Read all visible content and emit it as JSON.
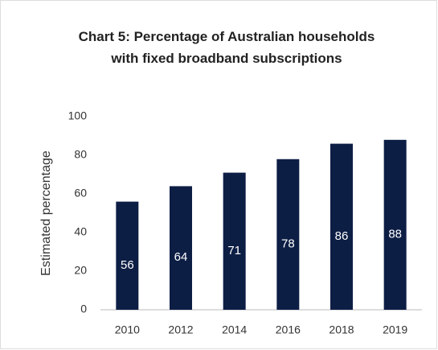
{
  "chart_data": {
    "type": "bar",
    "title": "Chart 5: Percentage of Australian households with fixed broadband subscriptions",
    "y_label": "Estimated percentage",
    "categories": [
      "2010",
      "2012",
      "2014",
      "2016",
      "2018",
      "2019"
    ],
    "values": [
      56,
      64,
      71,
      78,
      86,
      88
    ],
    "color": "#0d1e45",
    "ylim": [
      0,
      100
    ],
    "yticks": [
      0,
      20,
      40,
      60,
      80,
      100
    ],
    "grid": false
  }
}
